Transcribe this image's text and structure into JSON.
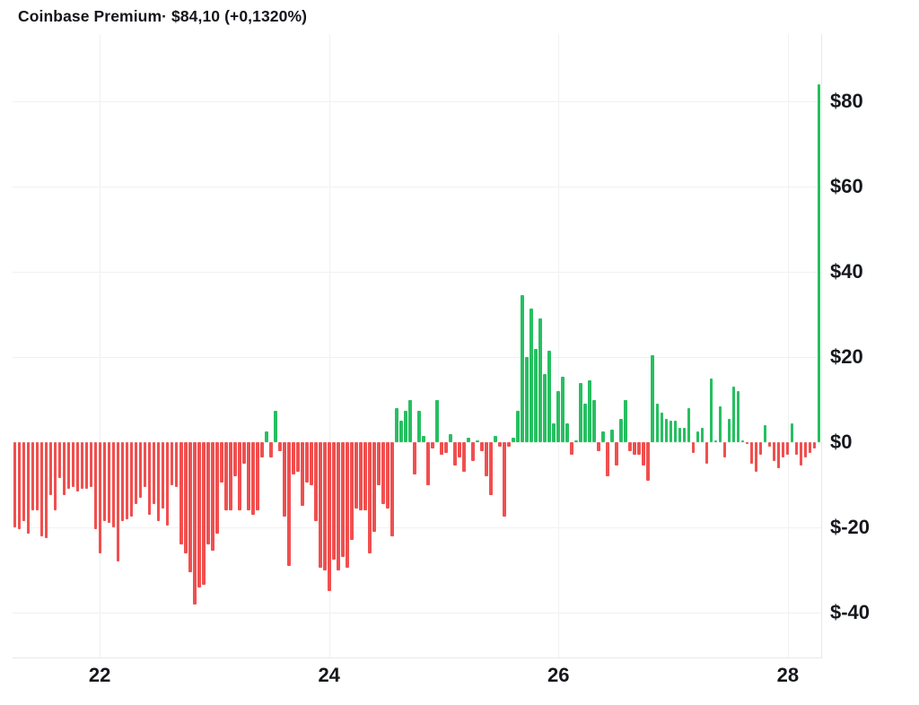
{
  "header": {
    "title": "Coinbase Premium· $84,10 (+0,1320%)"
  },
  "chart_data": {
    "type": "bar",
    "title": "Coinbase Premium",
    "current_value": "$84,10",
    "change_percent": "+0,1320%",
    "grid": true,
    "legend_position": "none",
    "x_axis": {
      "range": [
        21.24,
        28.29
      ],
      "ticks": [
        22,
        24,
        26,
        28
      ],
      "tick_labels": [
        "22",
        "24",
        "26",
        "28"
      ]
    },
    "y_axis": {
      "range": [
        -50.5,
        95.8
      ],
      "ticks": [
        80,
        60,
        40,
        20,
        0,
        -20,
        -40
      ],
      "tick_labels": [
        "$80",
        "$60",
        "$40",
        "$20",
        "$0",
        "$-20",
        "$-40"
      ]
    },
    "colors": {
      "positive": "#27bf61",
      "negative": "#f14f4f",
      "gridline": "#f1f1f3",
      "axis_line": "#e8e8ea",
      "text": "#16181d",
      "background": "#ffffff"
    },
    "values": [
      -20,
      -20.5,
      -18.5,
      -21.5,
      -16,
      -16,
      -22,
      -22.5,
      -12.5,
      -16,
      -8.5,
      -12.5,
      -11,
      -10.5,
      -11.5,
      -11,
      -11,
      -10.5,
      -20.5,
      -26,
      -18.5,
      -19,
      -20,
      -28,
      -18.5,
      -18,
      -17.5,
      -14.5,
      -13,
      -10.5,
      -17,
      -14.5,
      -18.5,
      -15.5,
      -19.5,
      -10,
      -10.5,
      -24,
      -26,
      -30.5,
      -38,
      -34,
      -33.5,
      -24,
      -25.5,
      -21.5,
      -9.5,
      -16,
      -16,
      -8,
      -16,
      -5,
      -16,
      -17,
      -16,
      -3.5,
      2.5,
      -3.5,
      7.5,
      -2,
      -17.5,
      -29,
      -7.5,
      -7,
      -15,
      -9.5,
      -10,
      -18.5,
      -29.5,
      -30,
      -35,
      -27.5,
      -30,
      -27,
      -29.5,
      -23,
      -15.5,
      -16,
      -16,
      -26,
      -21,
      -10,
      -14.5,
      -15.5,
      -22,
      8,
      5,
      7.5,
      10,
      -7.5,
      7.5,
      1.5,
      -10,
      -1.5,
      10,
      -3,
      -2.5,
      2,
      -5.5,
      -3.5,
      -7,
      1,
      -4.5,
      0.5,
      -2,
      -8,
      -12.5,
      1.5,
      -1,
      -17.5,
      -1,
      1,
      7.5,
      34.5,
      20,
      31.5,
      22,
      29,
      16,
      21.5,
      4.5,
      12,
      15.5,
      4.5,
      -3,
      0.5,
      14,
      9,
      14.5,
      10,
      -2,
      2.5,
      -8,
      3,
      -5.5,
      5.5,
      10,
      -2,
      -3,
      -3,
      -5.5,
      -9,
      20.5,
      9,
      7,
      5.5,
      5,
      5,
      3.5,
      3.5,
      8,
      -2.5,
      2.5,
      3.5,
      -5,
      15,
      0.5,
      8.5,
      -3.5,
      5.5,
      13,
      12,
      0.5,
      -0.5,
      -5,
      -7,
      -3,
      4,
      -1,
      -4.5,
      -6,
      -3.5,
      -3,
      4.5,
      -3,
      -5.5,
      -3.5,
      -2.5,
      -1.5,
      84.1
    ]
  }
}
